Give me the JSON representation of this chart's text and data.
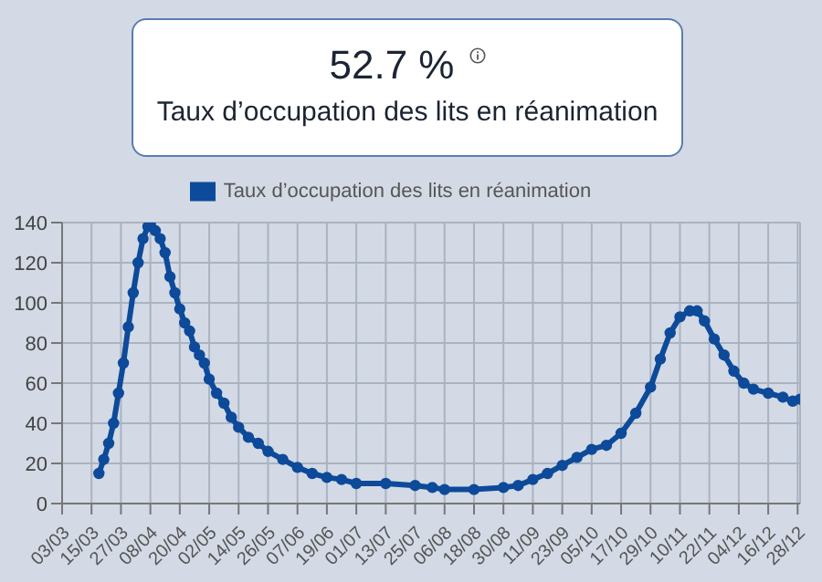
{
  "chart_data": {
    "type": "line",
    "title": "52.7 %",
    "subtitle": "Taux d’occupation des lits en réanimation",
    "x": [
      "--03-18",
      "--03-20",
      "--03-22",
      "--03-24",
      "--03-26",
      "--03-28",
      "--03-30",
      "--04-01",
      "--04-03",
      "--04-05",
      "--04-07",
      "--04-08",
      "--04-10",
      "--04-12",
      "--04-14",
      "--04-16",
      "--04-18",
      "--04-20",
      "--04-22",
      "--04-24",
      "--04-26",
      "--04-28",
      "--04-30",
      "--05-02",
      "--05-05",
      "--05-08",
      "--05-11",
      "--05-14",
      "--05-18",
      "--05-22",
      "--05-26",
      "--06-01",
      "--06-07",
      "--06-13",
      "--06-19",
      "--06-25",
      "--07-01",
      "--07-13",
      "--07-25",
      "--08-01",
      "--08-06",
      "--08-18",
      "--08-30",
      "--09-05",
      "--09-11",
      "--09-17",
      "--09-23",
      "--09-29",
      "--10-05",
      "--10-11",
      "--10-17",
      "--10-23",
      "--10-29",
      "--11-02",
      "--11-06",
      "--11-10",
      "--11-14",
      "--11-17",
      "--11-20",
      "--11-24",
      "--11-28",
      "--12-02",
      "--12-06",
      "--12-10",
      "--12-16",
      "--12-22",
      "--12-26",
      "--12-29"
    ],
    "series": [
      {
        "name": "Taux d’occupation des lits en réanimation",
        "color": "#0d4a9a",
        "values": [
          15,
          22,
          30,
          40,
          55,
          70,
          88,
          105,
          120,
          132,
          138,
          139,
          136,
          132,
          125,
          113,
          105,
          97,
          90,
          86,
          78,
          74,
          70,
          62,
          55,
          50,
          43,
          38,
          33,
          30,
          26,
          22,
          18,
          15,
          13,
          12,
          10,
          10,
          9,
          8,
          7,
          7,
          8,
          9,
          12,
          15,
          19,
          23,
          27,
          29,
          35,
          45,
          58,
          72,
          85,
          93,
          96,
          96,
          91,
          82,
          74,
          66,
          60,
          57,
          55,
          53,
          51,
          52
        ]
      }
    ],
    "xlim": [
      "--03-03",
      "--12-29"
    ],
    "xticks": [
      {
        "value": "--03-03",
        "label": "03/03"
      },
      {
        "value": "--03-15",
        "label": "15/03"
      },
      {
        "value": "--03-27",
        "label": "27/03"
      },
      {
        "value": "--04-08",
        "label": "08/04"
      },
      {
        "value": "--04-20",
        "label": "20/04"
      },
      {
        "value": "--05-02",
        "label": "02/05"
      },
      {
        "value": "--05-14",
        "label": "14/05"
      },
      {
        "value": "--05-26",
        "label": "26/05"
      },
      {
        "value": "--06-07",
        "label": "07/06"
      },
      {
        "value": "--06-19",
        "label": "19/06"
      },
      {
        "value": "--07-01",
        "label": "01/07"
      },
      {
        "value": "--07-13",
        "label": "13/07"
      },
      {
        "value": "--07-25",
        "label": "25/07"
      },
      {
        "value": "--08-06",
        "label": "06/08"
      },
      {
        "value": "--08-18",
        "label": "18/08"
      },
      {
        "value": "--08-30",
        "label": "30/08"
      },
      {
        "value": "--09-11",
        "label": "11/09"
      },
      {
        "value": "--09-23",
        "label": "23/09"
      },
      {
        "value": "--10-05",
        "label": "05/10"
      },
      {
        "value": "--10-17",
        "label": "17/10"
      },
      {
        "value": "--10-29",
        "label": "29/10"
      },
      {
        "value": "--11-10",
        "label": "10/11"
      },
      {
        "value": "--11-22",
        "label": "22/11"
      },
      {
        "value": "--12-04",
        "label": "04/12"
      },
      {
        "value": "--12-16",
        "label": "16/12"
      },
      {
        "value": "--12-28",
        "label": "28/12"
      }
    ],
    "ylim": [
      0,
      140
    ],
    "yticks": [
      0,
      20,
      40,
      60,
      80,
      100,
      120,
      140
    ],
    "grid": true,
    "legend": "top",
    "marker": "circle",
    "line_style": "solid"
  }
}
